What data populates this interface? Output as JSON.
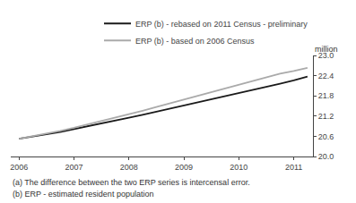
{
  "chart_data": {
    "type": "line",
    "x": [
      2006.0,
      2006.25,
      2006.5,
      2006.75,
      2007.0,
      2007.25,
      2007.5,
      2007.75,
      2008.0,
      2008.25,
      2008.5,
      2008.75,
      2009.0,
      2009.25,
      2009.5,
      2009.75,
      2010.0,
      2010.25,
      2010.5,
      2010.75,
      2011.0,
      2011.25
    ],
    "series": [
      {
        "name": "ERP (b) - rebased on 2011 Census - preliminary",
        "color": "#1a1a1a",
        "values": [
          20.53,
          20.59,
          20.66,
          20.73,
          20.81,
          20.89,
          20.98,
          21.06,
          21.15,
          21.24,
          21.33,
          21.42,
          21.51,
          21.6,
          21.69,
          21.78,
          21.87,
          21.97,
          22.06,
          22.16,
          22.26,
          22.37
        ]
      },
      {
        "name": "ERP (b) - based on 2006 Census",
        "color": "#aaaaaa",
        "values": [
          20.53,
          20.6,
          20.68,
          20.76,
          20.85,
          20.95,
          21.05,
          21.15,
          21.25,
          21.36,
          21.47,
          21.58,
          21.69,
          21.8,
          21.91,
          22.02,
          22.13,
          22.24,
          22.35,
          22.46,
          22.54,
          22.63
        ]
      }
    ],
    "xlim": [
      2005.85,
      2011.35
    ],
    "xticks": [
      2006,
      2007,
      2008,
      2009,
      2010,
      2011
    ],
    "ylim": [
      20.0,
      23.0
    ],
    "yticks": [
      {
        "value": 20.0,
        "label": "20.0"
      },
      20.6,
      21.2,
      21.8,
      22.4,
      {
        "value": 23.0,
        "label": "23.0"
      }
    ],
    "ylabel": "million",
    "annotations": [
      "(a) The difference between the two ERP series is intercensal error.",
      "(b) ERP - estimated resident population"
    ],
    "grid": false,
    "legend": "upper right"
  }
}
